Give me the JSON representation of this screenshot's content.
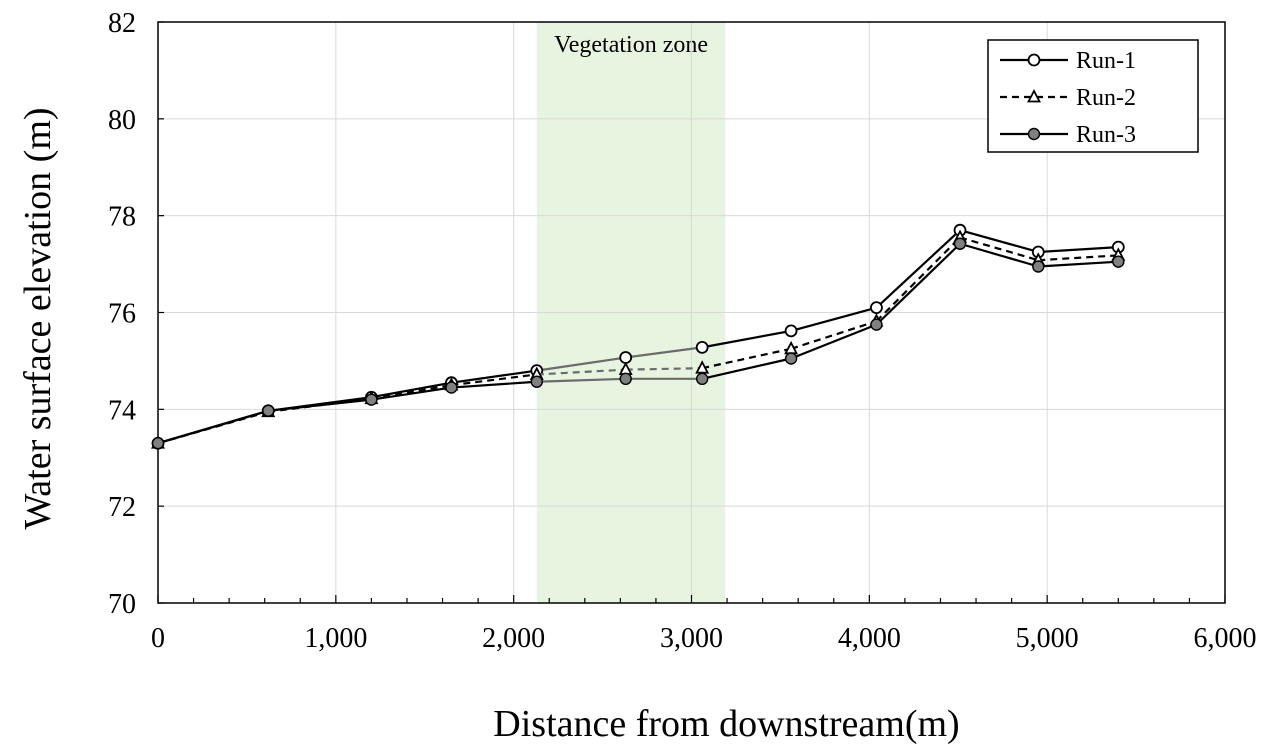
{
  "chart_data": {
    "type": "line",
    "title": "",
    "xlabel": "Distance from downstream(m)",
    "ylabel": "Water surface elevation (m)",
    "xlim": [
      0,
      6000
    ],
    "ylim": [
      70,
      82
    ],
    "x_ticks": [
      0,
      1000,
      2000,
      3000,
      4000,
      5000,
      6000
    ],
    "x_tick_labels": [
      "0",
      "1,000",
      "2,000",
      "3,000",
      "4,000",
      "5,000",
      "6,000"
    ],
    "y_ticks": [
      70,
      72,
      74,
      76,
      78,
      80,
      82
    ],
    "y_tick_labels": [
      "70",
      "72",
      "74",
      "76",
      "78",
      "80",
      "82"
    ],
    "grid": true,
    "legend_position": "top-right",
    "vegetation_zone": {
      "label": "Vegetation zone",
      "x_start": 2130,
      "x_end": 3190,
      "color": "#e6f4e0"
    },
    "series": [
      {
        "name": "Run-1",
        "marker": "open-circle",
        "line_style": "solid",
        "color": "#000000",
        "x": [
          0,
          620,
          1200,
          1650,
          2130,
          2630,
          3060,
          3560,
          4040,
          4510,
          4950,
          5400
        ],
        "y": [
          73.3,
          73.97,
          74.25,
          74.55,
          74.8,
          75.07,
          75.28,
          75.62,
          76.1,
          77.7,
          77.25,
          77.35
        ]
      },
      {
        "name": "Run-2",
        "marker": "triangle",
        "line_style": "dashed",
        "color": "#000000",
        "x": [
          0,
          620,
          1200,
          1650,
          2130,
          2630,
          3060,
          3560,
          4040,
          4510,
          4950,
          5400
        ],
        "y": [
          73.3,
          73.95,
          74.22,
          74.5,
          74.72,
          74.82,
          74.85,
          75.25,
          75.82,
          77.55,
          77.08,
          77.18
        ]
      },
      {
        "name": "Run-3",
        "marker": "filled-circle",
        "line_style": "solid",
        "color": "#000000",
        "x": [
          0,
          620,
          1200,
          1650,
          2130,
          2630,
          3060,
          3560,
          4040,
          4510,
          4950,
          5400
        ],
        "y": [
          73.3,
          73.97,
          74.2,
          74.45,
          74.57,
          74.63,
          74.63,
          75.05,
          75.75,
          77.42,
          76.95,
          77.05
        ]
      }
    ]
  }
}
